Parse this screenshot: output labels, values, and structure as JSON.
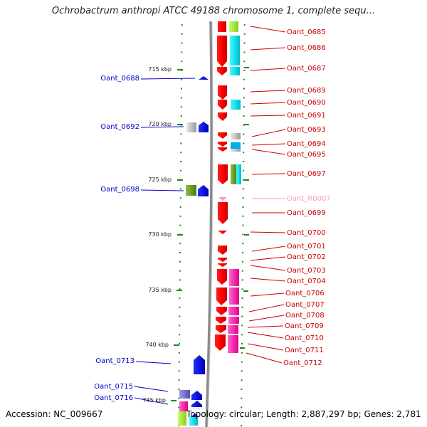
{
  "title": "Ochrobactrum anthropi ATCC 49188 chromosome 1, complete sequ...",
  "footer": {
    "accession": "Accession: NC_009667",
    "topology": "Topology: circular; Length: 2,887,297 bp; Genes: 2,781"
  },
  "scale_labels": [
    "715 kbp",
    "720 kbp",
    "725 kbp",
    "730 kbp",
    "735 kbp",
    "740 kbp",
    "745 kbp"
  ],
  "left_labels": [
    "Oant_0688",
    "Oant_0692",
    "Oant_0698",
    "Oant_0713",
    "Oant_0715",
    "Oant_0716"
  ],
  "right_labels": [
    "Oant_0685",
    "Oant_0686",
    "Oant_0687",
    "Oant_0689",
    "Oant_0690",
    "Oant_0691",
    "Oant_0693",
    "Oant_0694",
    "Oant_0695",
    "Oant_0697",
    "Oant_R0007",
    "Oant_0699",
    "Oant_0700",
    "Oant_0701",
    "Oant_0702",
    "Oant_0703",
    "Oant_0704",
    "Oant_0706",
    "Oant_0707",
    "Oant_0708",
    "Oant_0709",
    "Oant_0710",
    "Oant_0711",
    "Oant_0712"
  ],
  "colors": {
    "left_label": "#0000cc",
    "right_label": "#cc0000",
    "rna_label": "#ff99cc",
    "backbone": "#8a8a8a",
    "tick": "#1a8a1a"
  }
}
